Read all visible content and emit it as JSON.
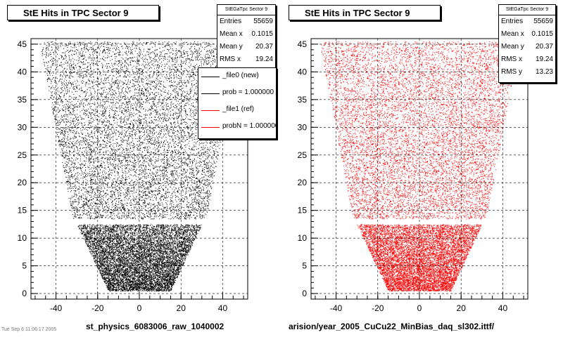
{
  "chart_data": [
    {
      "type": "scatter",
      "title": "StE Hits in TPC Sector 9",
      "xlabel": "",
      "ylabel": "",
      "xlim": [
        -52,
        52
      ],
      "ylim": [
        -1,
        46
      ],
      "x_ticks": [
        "-40",
        "-20",
        "0",
        "20",
        "40"
      ],
      "y_ticks": [
        "0",
        "5",
        "10",
        "15",
        "20",
        "25",
        "30",
        "35",
        "40",
        "45"
      ],
      "grid": true,
      "marker_color": "#000000",
      "stats": {
        "header": "StEGaTpc Sector 9",
        "rows": [
          {
            "label": "Entries",
            "value": "55659"
          },
          {
            "label": "Mean x",
            "value": "0.1015"
          },
          {
            "label": "Mean y",
            "value": "20.37"
          },
          {
            "label": "RMS x",
            "value": "19.24"
          }
        ]
      },
      "legend": {
        "placement": "top-right",
        "entries": [
          {
            "label": "_file0 (new)",
            "color": "#000000"
          },
          {
            "label": "prob = 1.000000",
            "color": "#000000"
          },
          {
            "label": "_file1 (ref)",
            "color": "#ff0000"
          },
          {
            "label": "probN = 1.000000",
            "color": "#ff0000"
          }
        ]
      },
      "file_label": "st_physics_6083006_raw_1040002",
      "region": {
        "upper_rows_y": [
          13.5,
          45.5
        ],
        "upper_halfwidth_bottom": 32,
        "upper_halfwidth_top": 48,
        "lower_rows_y": [
          0.5,
          12.5
        ],
        "lower_halfwidth_bottom": 15,
        "lower_halfwidth_top": 30
      }
    },
    {
      "type": "scatter",
      "title": "StE Hits in TPC Sector 9",
      "xlabel": "",
      "ylabel": "",
      "xlim": [
        -52,
        52
      ],
      "ylim": [
        -1,
        46
      ],
      "x_ticks": [
        "-40",
        "-20",
        "0",
        "20",
        "40"
      ],
      "y_ticks": [
        "0",
        "5",
        "10",
        "15",
        "20",
        "25",
        "30",
        "35",
        "40",
        "45"
      ],
      "grid": true,
      "marker_color": "#ff0000",
      "stats": {
        "header": "StEGaTpc Sector 9",
        "rows": [
          {
            "label": "Entries",
            "value": "55659"
          },
          {
            "label": "Mean x",
            "value": "0.1015"
          },
          {
            "label": "Mean y",
            "value": "20.37"
          },
          {
            "label": "RMS x",
            "value": "19.24"
          },
          {
            "label": "RMS y",
            "value": "13.23"
          }
        ]
      },
      "file_label": "arision/year_2005_CuCu22_MinBias_daq_sl302.ittf/",
      "region": {
        "upper_rows_y": [
          13.5,
          45.5
        ],
        "upper_halfwidth_bottom": 32,
        "upper_halfwidth_top": 48,
        "lower_rows_y": [
          0.5,
          12.5
        ],
        "lower_halfwidth_bottom": 15,
        "lower_halfwidth_top": 30
      }
    }
  ],
  "footer": {
    "text": "Tue Sep 6 11:06:17 2005"
  }
}
